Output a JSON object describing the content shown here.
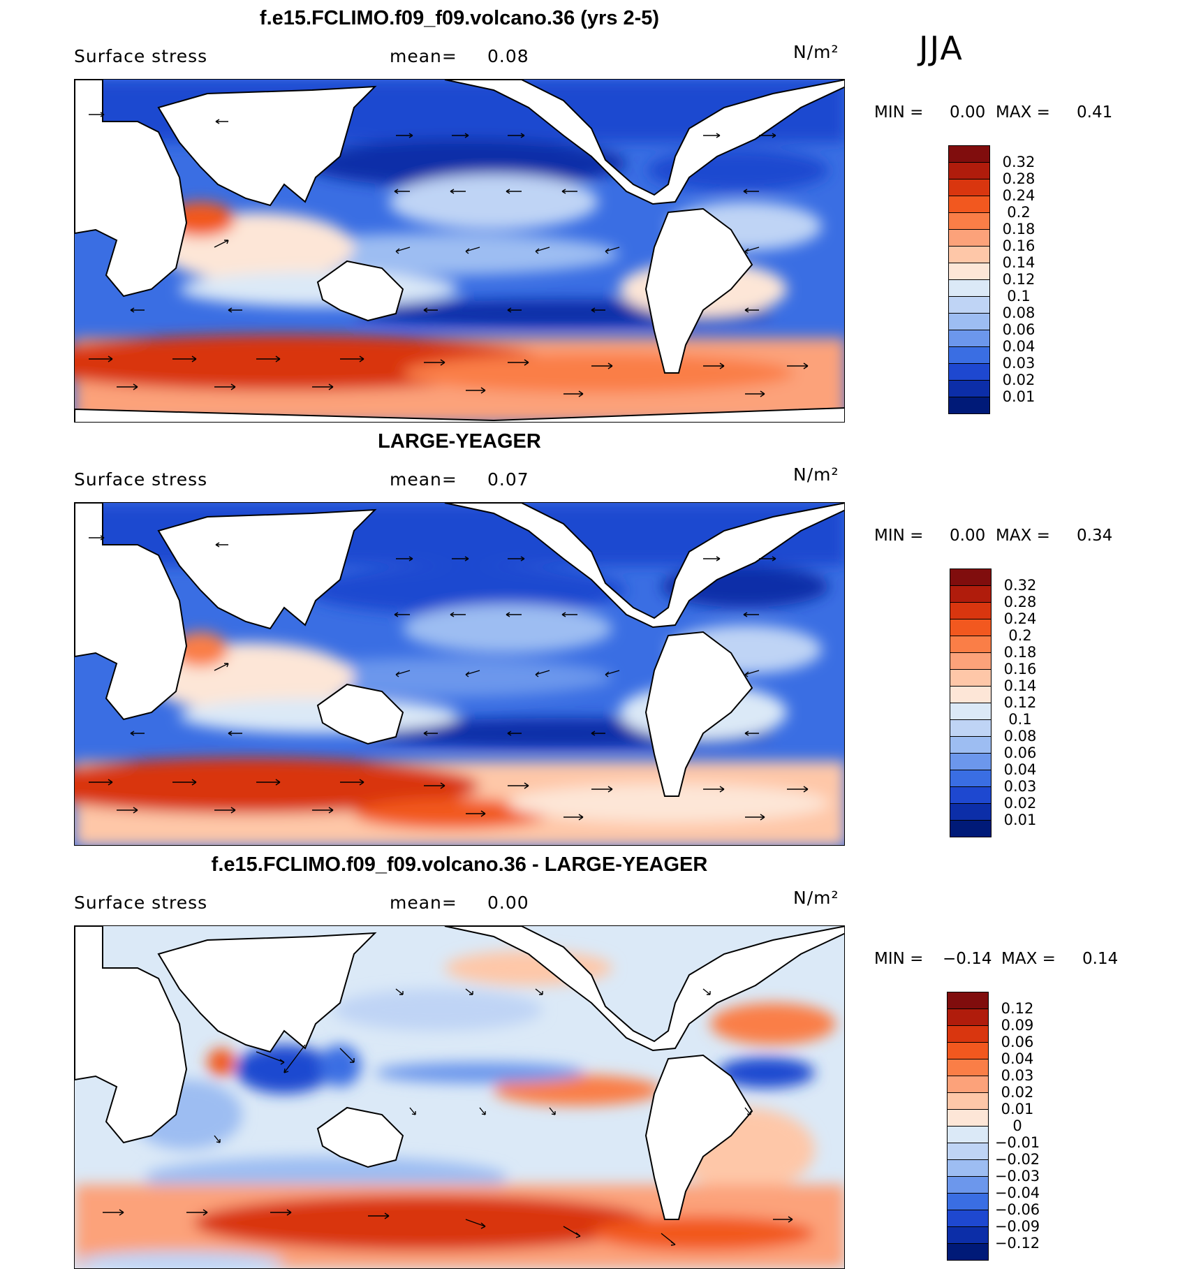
{
  "season": "JJA",
  "panels": [
    {
      "title": "f.e15.FCLIMO.f09_f09.volcano.36 (yrs 2-5)",
      "variable": "Surface stress",
      "mean_label": "mean=",
      "mean_value": "0.08",
      "units": "N/m²",
      "min_label": "MIN =",
      "min_value": "0.00",
      "max_label": "MAX =",
      "max_value": "0.41",
      "colorbar": {
        "labels": [
          "0.32",
          "0.28",
          "0.24",
          "0.2",
          "0.18",
          "0.16",
          "0.14",
          "0.12",
          "0.1",
          "0.08",
          "0.06",
          "0.04",
          "0.03",
          "0.02",
          "0.01"
        ],
        "colors": [
          "#800d0d",
          "#b01c0c",
          "#d9360f",
          "#f2581f",
          "#fa7e47",
          "#fca27a",
          "#fec7a8",
          "#fde6d7",
          "#dbe9f7",
          "#bfd4f5",
          "#9dbdf2",
          "#6c97ec",
          "#3a6ee3",
          "#1e48d0",
          "#0c2ea8",
          "#001a78"
        ]
      }
    },
    {
      "title": "LARGE-YEAGER",
      "variable": "Surface stress",
      "mean_label": "mean=",
      "mean_value": "0.07",
      "units": "N/m²",
      "min_label": "MIN =",
      "min_value": "0.00",
      "max_label": "MAX =",
      "max_value": "0.34",
      "colorbar": {
        "labels": [
          "0.32",
          "0.28",
          "0.24",
          "0.2",
          "0.18",
          "0.16",
          "0.14",
          "0.12",
          "0.1",
          "0.08",
          "0.06",
          "0.04",
          "0.03",
          "0.02",
          "0.01"
        ],
        "colors": [
          "#800d0d",
          "#b01c0c",
          "#d9360f",
          "#f2581f",
          "#fa7e47",
          "#fca27a",
          "#fec7a8",
          "#fde6d7",
          "#dbe9f7",
          "#bfd4f5",
          "#9dbdf2",
          "#6c97ec",
          "#3a6ee3",
          "#1e48d0",
          "#0c2ea8",
          "#001a78"
        ]
      }
    },
    {
      "title": "f.e15.FCLIMO.f09_f09.volcano.36 - LARGE-YEAGER",
      "variable": "Surface stress",
      "mean_label": "mean=",
      "mean_value": "0.00",
      "units": "N/m²",
      "min_label": "MIN =",
      "min_value": "−0.14",
      "max_label": "MAX =",
      "max_value": "0.14",
      "colorbar": {
        "labels": [
          "0.12",
          "0.09",
          "0.06",
          "0.04",
          "0.03",
          "0.02",
          "0.01",
          "0",
          "−0.01",
          "−0.02",
          "−0.03",
          "−0.04",
          "−0.06",
          "−0.09",
          "−0.12"
        ],
        "colors": [
          "#800d0d",
          "#b01c0c",
          "#d9360f",
          "#f2581f",
          "#fa7e47",
          "#fca27a",
          "#fec7a8",
          "#fde6d7",
          "#dbe9f7",
          "#bfd4f5",
          "#9dbdf2",
          "#6c97ec",
          "#3a6ee3",
          "#1e48d0",
          "#0c2ea8",
          "#001a78"
        ]
      }
    }
  ],
  "map_palette": {
    "land": "#ffffff",
    "coast": "#000000",
    "vectors": "#000000"
  }
}
